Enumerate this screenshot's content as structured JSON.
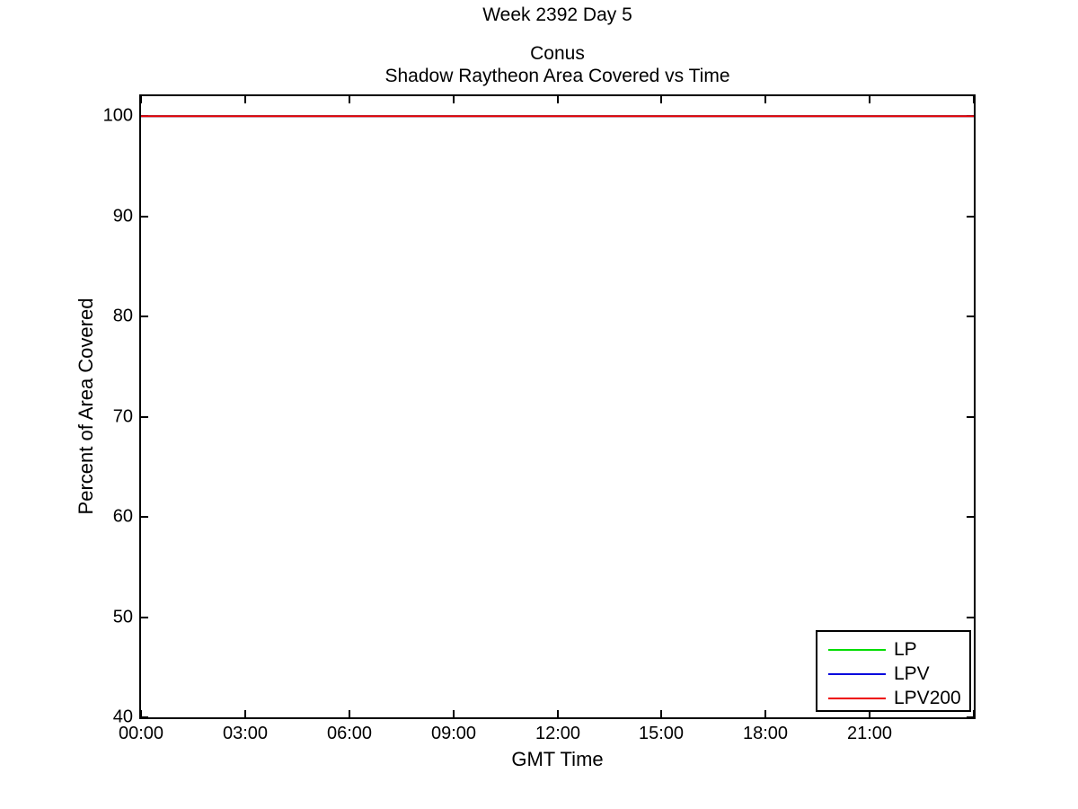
{
  "figure": {
    "background": "#ffffff",
    "text_color": "#000000"
  },
  "chart_data": {
    "type": "line",
    "suptitle": "Week 2392 Day 5",
    "title": "Conus",
    "subtitle": "Shadow Raytheon Area Covered vs Time",
    "xlabel": "GMT Time",
    "ylabel": "Percent of Area Covered",
    "xlim": [
      0,
      24
    ],
    "ylim": [
      40,
      102
    ],
    "xticks": {
      "values": [
        0,
        3,
        6,
        9,
        12,
        15,
        18,
        21,
        24
      ],
      "labels": [
        "00:00",
        "03:00",
        "06:00",
        "09:00",
        "12:00",
        "15:00",
        "18:00",
        "21:00",
        ""
      ]
    },
    "yticks": {
      "values": [
        40,
        50,
        60,
        70,
        80,
        90,
        100
      ],
      "labels": [
        "40",
        "50",
        "60",
        "70",
        "80",
        "90",
        "100"
      ]
    },
    "grid": false,
    "axis_color": "#000000",
    "tick_direction": "in",
    "legend": {
      "position": "lower-right",
      "border_color": "#000000",
      "background": "#ffffff"
    },
    "series": [
      {
        "name": "LP",
        "color": "#00dd00",
        "x": [
          0,
          24
        ],
        "y": [
          100,
          100
        ]
      },
      {
        "name": "LPV",
        "color": "#0000dd",
        "x": [
          0,
          24
        ],
        "y": [
          100,
          100
        ]
      },
      {
        "name": "LPV200",
        "color": "#ee0000",
        "x": [
          0,
          24
        ],
        "y": [
          100,
          100
        ]
      }
    ]
  }
}
